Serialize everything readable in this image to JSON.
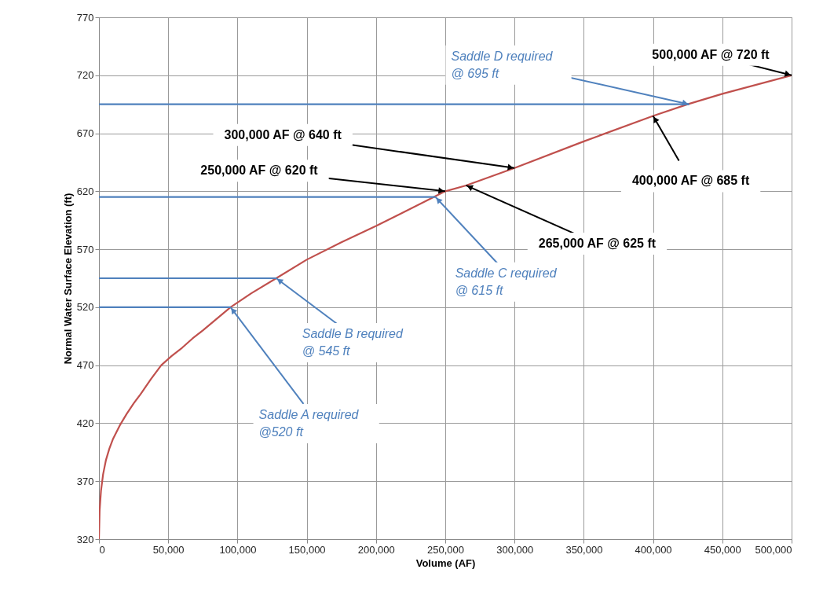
{
  "chart_data": {
    "type": "line",
    "xlabel": "Volume (AF)",
    "ylabel": "Normal Water Surface Elevation (ft)",
    "xlim": [
      0,
      500000
    ],
    "ylim": [
      320,
      770
    ],
    "xticks": [
      0,
      {
        "value": 50000,
        "label": "50,000"
      },
      {
        "value": 100000,
        "label": "100,000"
      },
      {
        "value": 150000,
        "label": "150,000"
      },
      {
        "value": 200000,
        "label": "200,000"
      },
      {
        "value": 250000,
        "label": "250,000"
      },
      {
        "value": 300000,
        "label": "300,000"
      },
      {
        "value": 350000,
        "label": "350,000"
      },
      {
        "value": 400000,
        "label": "400,000"
      },
      {
        "value": 450000,
        "label": "450,000"
      },
      {
        "value": 500000,
        "label": "500,000"
      }
    ],
    "yticks": [
      320,
      370,
      420,
      470,
      520,
      570,
      620,
      670,
      720,
      770
    ],
    "grid": true,
    "series": [
      {
        "color": "#c0504d",
        "x": [
          0,
          500,
          1500,
          3000,
          5000,
          7500,
          10000,
          15000,
          20000,
          25000,
          30000,
          37500,
          45000,
          52500,
          60000,
          67500,
          75000,
          85000,
          95000,
          110000,
          128000,
          150000,
          175000,
          200000,
          225000,
          250000,
          265000,
          300000,
          350000,
          400000,
          425000,
          450000,
          500000
        ],
        "values": [
          320,
          345,
          362,
          376,
          388,
          398,
          406,
          418,
          428,
          437,
          445,
          458,
          470,
          478,
          485,
          493,
          500,
          510,
          520,
          532,
          545,
          561,
          576,
          590,
          605,
          620,
          625,
          640,
          663,
          685,
          695,
          704,
          720
        ]
      },
      {
        "color": "#4f81bd",
        "x": [
          0,
          95000
        ],
        "values": [
          520,
          520
        ]
      },
      {
        "color": "#4f81bd",
        "x": [
          0,
          128000
        ],
        "values": [
          545,
          545
        ]
      },
      {
        "color": "#4f81bd",
        "x": [
          0,
          243000
        ],
        "values": [
          615,
          615
        ]
      },
      {
        "color": "#4f81bd",
        "x": [
          0,
          426000
        ],
        "values": [
          695,
          695
        ]
      }
    ],
    "annotations": [
      {
        "text": "500,000 AF @ 720 ft",
        "x": 500000,
        "y": 720
      },
      {
        "text": "400,000 AF @ 685 ft",
        "x": 400000,
        "y": 685
      },
      {
        "text": "300,000 AF @ 640 ft",
        "x": 300000,
        "y": 640
      },
      {
        "text": "250,000 AF @ 620 ft",
        "x": 250000,
        "y": 620
      },
      {
        "text": "265,000 AF @ 625 ft",
        "x": 265000,
        "y": 625
      },
      {
        "text": "Saddle D required\n@ 695 ft",
        "x": 426000,
        "y": 695
      },
      {
        "text": "Saddle C required\n@ 615 ft",
        "x": 243000,
        "y": 615
      },
      {
        "text": "Saddle B required\n@ 545 ft",
        "x": 128000,
        "y": 545
      },
      {
        "text": "Saddle A required\n@520 ft",
        "x": 95000,
        "y": 520
      }
    ]
  }
}
